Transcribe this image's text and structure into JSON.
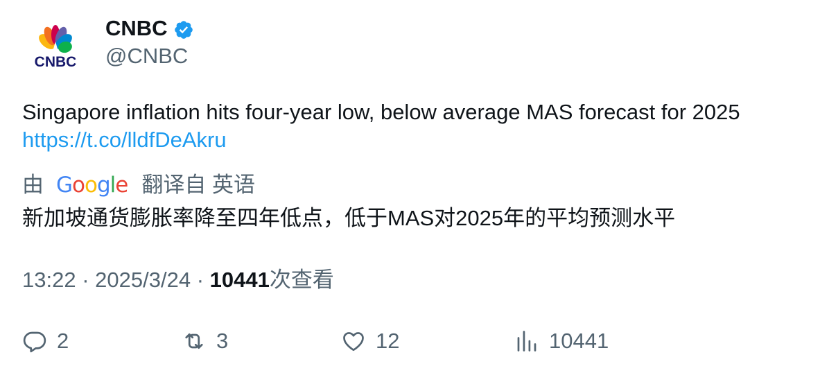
{
  "author": {
    "display_name": "CNBC",
    "handle": "@CNBC",
    "avatar_text": "CNBC",
    "verified": true,
    "verified_color": "#1d9bf0"
  },
  "tweet": {
    "text": "Singapore inflation hits four-year low, below average MAS forecast for 2025",
    "link": "https://t.co/lldfDeAkru"
  },
  "translation": {
    "by_label": "由",
    "provider": "Google",
    "source_label": "翻译自 英语",
    "translated_text": "新加坡通货膨胀率降至四年低点，低于MAS对2025年的平均预测水平"
  },
  "meta": {
    "time": "13:22",
    "separator": "·",
    "date": "2025/3/24",
    "views": "10441",
    "views_label": "次查看"
  },
  "actions": {
    "replies": "2",
    "reposts": "3",
    "likes": "12",
    "views": "10441"
  },
  "colors": {
    "link": "#1d9bf0",
    "secondary_text": "#536471",
    "primary_text": "#0f1419"
  },
  "icons": {
    "reply": "reply-icon",
    "repost": "repost-icon",
    "like": "heart-icon",
    "views": "bar-chart-icon"
  }
}
